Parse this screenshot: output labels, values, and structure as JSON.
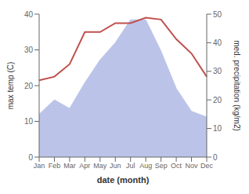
{
  "chart_data": {
    "type": "line",
    "categories": [
      "Jan",
      "Feb",
      "Mar",
      "Apr",
      "May",
      "Jun",
      "Jul",
      "Aug",
      "Sep",
      "Oct",
      "Nov",
      "Dec"
    ],
    "series": [
      {
        "type": "area",
        "axis": "y2",
        "color": "#bbc4e8",
        "values": [
          15.0,
          20.0,
          17.0,
          26.0,
          34.0,
          40.0,
          48.0,
          48.0,
          37.0,
          24.0,
          16.0,
          14.0
        ]
      },
      {
        "type": "line",
        "color": "#c0504d",
        "values": [
          21.5,
          22.5,
          26.0,
          35.0,
          35.0,
          37.5,
          37.5,
          39.0,
          38.5,
          33.0,
          29.0,
          22.5
        ]
      }
    ],
    "xlabel": "date (month)",
    "ylabel": "max temp (C)",
    "y2label": "med. precipitation (kg/m2)",
    "ylim": [
      0,
      40
    ],
    "yticks": [
      0,
      10,
      20,
      30,
      40
    ],
    "y2lim": [
      0,
      50
    ],
    "y2ticks": [
      0,
      10,
      20,
      30,
      40,
      50
    ],
    "grid": false
  }
}
